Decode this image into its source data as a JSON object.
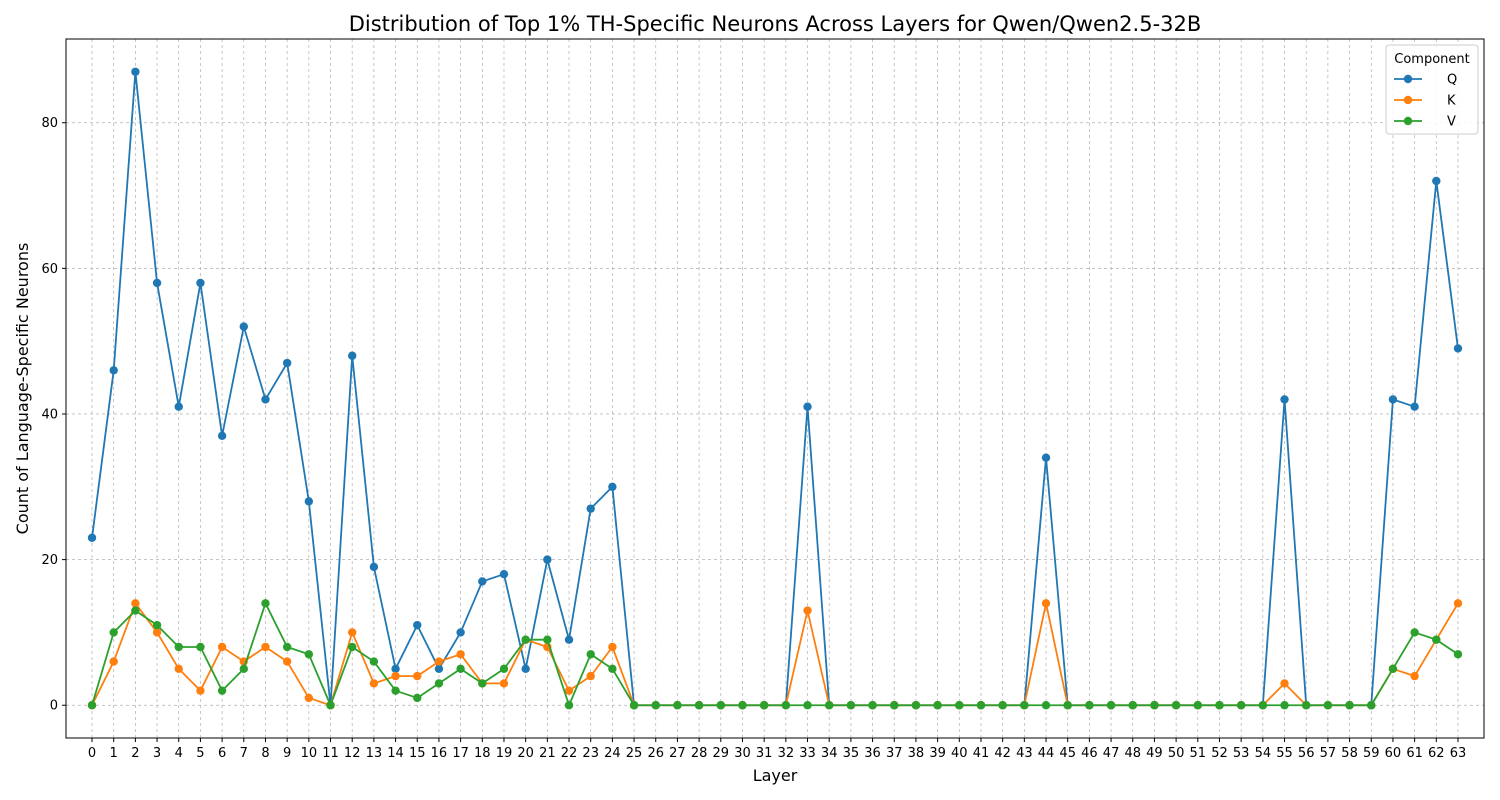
{
  "chart_data": {
    "type": "line",
    "title": "Distribution of Top 1% TH-Specific Neurons Across Layers for Qwen/Qwen2.5-32B",
    "xlabel": "Layer",
    "ylabel": "Count of Language-Specific Neurons",
    "x": [
      0,
      1,
      2,
      3,
      4,
      5,
      6,
      7,
      8,
      9,
      10,
      11,
      12,
      13,
      14,
      15,
      16,
      17,
      18,
      19,
      20,
      21,
      22,
      23,
      24,
      25,
      26,
      27,
      28,
      29,
      30,
      31,
      32,
      33,
      34,
      35,
      36,
      37,
      38,
      39,
      40,
      41,
      42,
      43,
      44,
      45,
      46,
      47,
      48,
      49,
      50,
      51,
      52,
      53,
      54,
      55,
      56,
      57,
      58,
      59,
      60,
      61,
      62,
      63
    ],
    "yticks": [
      0,
      20,
      40,
      60,
      80
    ],
    "ylim": [
      -4.5,
      91.5
    ],
    "xlim": [
      -1.2,
      64.2
    ],
    "grid": true,
    "legend": {
      "title": "Component",
      "placement": "top-right"
    },
    "series": [
      {
        "name": "Q",
        "color": "#1f77b4",
        "values": [
          23,
          46,
          87,
          58,
          41,
          58,
          37,
          52,
          42,
          47,
          28,
          0,
          48,
          19,
          5,
          11,
          5,
          10,
          17,
          18,
          5,
          20,
          9,
          27,
          30,
          0,
          0,
          0,
          0,
          0,
          0,
          0,
          0,
          41,
          0,
          0,
          0,
          0,
          0,
          0,
          0,
          0,
          0,
          0,
          34,
          0,
          0,
          0,
          0,
          0,
          0,
          0,
          0,
          0,
          0,
          42,
          0,
          0,
          0,
          0,
          42,
          41,
          72,
          49
        ]
      },
      {
        "name": "K",
        "color": "#ff7f0e",
        "values": [
          0,
          6,
          14,
          10,
          5,
          2,
          8,
          6,
          8,
          6,
          1,
          0,
          10,
          3,
          4,
          4,
          6,
          7,
          3,
          3,
          9,
          8,
          2,
          4,
          8,
          0,
          0,
          0,
          0,
          0,
          0,
          0,
          0,
          13,
          0,
          0,
          0,
          0,
          0,
          0,
          0,
          0,
          0,
          0,
          14,
          0,
          0,
          0,
          0,
          0,
          0,
          0,
          0,
          0,
          0,
          3,
          0,
          0,
          0,
          0,
          5,
          4,
          9,
          14
        ]
      },
      {
        "name": "V",
        "color": "#2ca02c",
        "values": [
          0,
          10,
          13,
          11,
          8,
          8,
          2,
          5,
          14,
          8,
          7,
          0,
          8,
          6,
          2,
          1,
          3,
          5,
          3,
          5,
          9,
          9,
          0,
          7,
          5,
          0,
          0,
          0,
          0,
          0,
          0,
          0,
          0,
          0,
          0,
          0,
          0,
          0,
          0,
          0,
          0,
          0,
          0,
          0,
          0,
          0,
          0,
          0,
          0,
          0,
          0,
          0,
          0,
          0,
          0,
          0,
          0,
          0,
          0,
          0,
          5,
          10,
          9,
          7
        ]
      }
    ]
  }
}
